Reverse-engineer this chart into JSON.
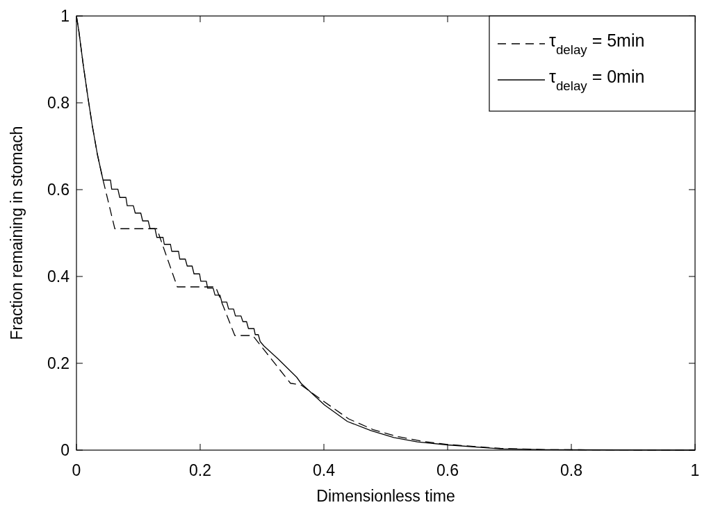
{
  "chart_data": {
    "type": "line",
    "xlabel": "Dimensionless time",
    "ylabel": "Fraction remaining in stomach",
    "xlim": [
      0,
      1
    ],
    "ylim": [
      0,
      1
    ],
    "xticks": [
      0,
      0.2,
      0.4,
      0.6,
      0.8,
      1
    ],
    "yticks": [
      0,
      0.2,
      0.4,
      0.6,
      0.8,
      1
    ],
    "grid": false,
    "legend": "top right",
    "marker": "none",
    "series": [
      {
        "name": "τ$_{delay}$ = 5min",
        "color": "#000000",
        "line_style": "dashed",
        "x": [
          0,
          0.0037,
          0.011,
          0.019,
          0.026,
          0.034,
          0.043,
          0.062,
          0.13,
          0.163,
          0.225,
          0.256,
          0.285,
          0.346,
          0.363,
          0.4,
          0.44,
          0.48,
          0.52,
          0.56,
          0.6,
          0.685,
          0.76,
          1
        ],
        "values": [
          1,
          0.967,
          0.887,
          0.808,
          0.744,
          0.68,
          0.622,
          0.51,
          0.51,
          0.376,
          0.376,
          0.264,
          0.264,
          0.154,
          0.15,
          0.112,
          0.072,
          0.047,
          0.031,
          0.02,
          0.013,
          0.004,
          0.001,
          0
        ]
      },
      {
        "name": "τ$_{delay}$ = 0min",
        "color": "#000000",
        "line_style": "solid",
        "x": [
          0,
          0.0037,
          0.011,
          0.019,
          0.026,
          0.034,
          0.043,
          0.055,
          0.057,
          0.067,
          0.07,
          0.08,
          0.082,
          0.092,
          0.095,
          0.104,
          0.107,
          0.116,
          0.119,
          0.127,
          0.13,
          0.14,
          0.142,
          0.152,
          0.154,
          0.165,
          0.167,
          0.176,
          0.179,
          0.187,
          0.19,
          0.199,
          0.201,
          0.21,
          0.212,
          0.221,
          0.224,
          0.232,
          0.235,
          0.243,
          0.246,
          0.254,
          0.257,
          0.266,
          0.269,
          0.275,
          0.278,
          0.287,
          0.289,
          0.294,
          0.297,
          0.303,
          0.326,
          0.356,
          0.363,
          0.401,
          0.438,
          0.476,
          0.513,
          0.551,
          0.6,
          0.685,
          0.76,
          1
        ],
        "values": [
          1,
          0.967,
          0.887,
          0.808,
          0.744,
          0.68,
          0.622,
          0.622,
          0.601,
          0.601,
          0.582,
          0.582,
          0.563,
          0.563,
          0.546,
          0.546,
          0.528,
          0.528,
          0.51,
          0.51,
          0.49,
          0.49,
          0.474,
          0.474,
          0.458,
          0.458,
          0.44,
          0.44,
          0.424,
          0.424,
          0.406,
          0.406,
          0.389,
          0.389,
          0.373,
          0.373,
          0.357,
          0.357,
          0.341,
          0.341,
          0.325,
          0.325,
          0.309,
          0.309,
          0.296,
          0.296,
          0.28,
          0.28,
          0.266,
          0.266,
          0.25,
          0.24,
          0.21,
          0.168,
          0.154,
          0.104,
          0.066,
          0.045,
          0.029,
          0.019,
          0.012,
          0.003,
          0.001,
          0
        ]
      }
    ]
  }
}
